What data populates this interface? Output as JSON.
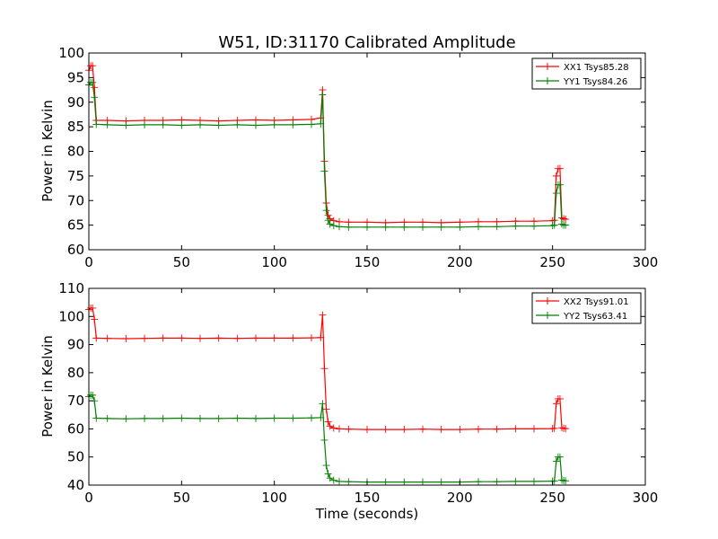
{
  "chart_data": [
    {
      "type": "line",
      "title": "W51, ID:31170 Calibrated Amplitude",
      "xlabel": "",
      "ylabel": "Power in Kelvin",
      "xlim": [
        0,
        300
      ],
      "ylim": [
        60,
        100
      ],
      "xticks": [
        0,
        50,
        100,
        150,
        200,
        250,
        300
      ],
      "yticks": [
        60,
        65,
        70,
        75,
        80,
        85,
        90,
        95,
        100
      ],
      "grid": false,
      "legend": "top-right",
      "marker": "plus",
      "series": [
        {
          "name": "XX1 Tsys85.28",
          "color": "#ff0000",
          "x": [
            0,
            1,
            2,
            3,
            4,
            10,
            20,
            30,
            40,
            50,
            60,
            70,
            80,
            90,
            100,
            110,
            120,
            125,
            126,
            127,
            128,
            129,
            130,
            132,
            135,
            140,
            150,
            160,
            170,
            180,
            190,
            200,
            210,
            220,
            230,
            240,
            250,
            251,
            252,
            253,
            254,
            255,
            256,
            257
          ],
          "y": [
            96.5,
            97.4,
            97.4,
            93.0,
            86.3,
            86.3,
            86.2,
            86.3,
            86.3,
            86.4,
            86.3,
            86.2,
            86.3,
            86.4,
            86.3,
            86.4,
            86.5,
            86.8,
            92.5,
            78.0,
            69.5,
            67.0,
            66.3,
            65.9,
            65.7,
            65.6,
            65.6,
            65.5,
            65.6,
            65.6,
            65.5,
            65.6,
            65.7,
            65.7,
            65.8,
            65.8,
            65.9,
            66.0,
            75.0,
            76.5,
            76.5,
            66.5,
            66.3,
            66.2
          ]
        },
        {
          "name": "YY1 Tsys84.26",
          "color": "#008000",
          "x": [
            0,
            1,
            2,
            3,
            4,
            10,
            20,
            30,
            40,
            50,
            60,
            70,
            80,
            90,
            100,
            110,
            120,
            125,
            126,
            127,
            128,
            129,
            130,
            132,
            135,
            140,
            150,
            160,
            170,
            180,
            190,
            200,
            210,
            220,
            230,
            240,
            250,
            251,
            252,
            253,
            254,
            255,
            256,
            257
          ],
          "y": [
            93.5,
            94.0,
            94.0,
            91.0,
            85.5,
            85.4,
            85.3,
            85.4,
            85.4,
            85.3,
            85.4,
            85.3,
            85.4,
            85.3,
            85.4,
            85.4,
            85.5,
            85.6,
            91.5,
            76.0,
            68.0,
            66.0,
            65.2,
            64.9,
            64.7,
            64.6,
            64.6,
            64.6,
            64.6,
            64.6,
            64.6,
            64.6,
            64.7,
            64.7,
            64.8,
            64.8,
            64.9,
            65.0,
            71.5,
            73.2,
            73.2,
            65.2,
            65.0,
            65.0
          ]
        }
      ]
    },
    {
      "type": "line",
      "title": "",
      "xlabel": "Time (seconds)",
      "ylabel": "Power in Kelvin",
      "xlim": [
        0,
        300
      ],
      "ylim": [
        40,
        110
      ],
      "xticks": [
        0,
        50,
        100,
        150,
        200,
        250,
        300
      ],
      "yticks": [
        40,
        50,
        60,
        70,
        80,
        90,
        100,
        110
      ],
      "grid": false,
      "legend": "top-right",
      "marker": "plus",
      "series": [
        {
          "name": "XX2 Tsys91.01",
          "color": "#ff0000",
          "x": [
            0,
            1,
            2,
            3,
            4,
            10,
            20,
            30,
            40,
            50,
            60,
            70,
            80,
            90,
            100,
            110,
            120,
            125,
            126,
            127,
            128,
            129,
            130,
            132,
            135,
            140,
            150,
            160,
            170,
            180,
            190,
            200,
            210,
            220,
            230,
            240,
            250,
            251,
            252,
            253,
            254,
            255,
            256,
            257
          ],
          "y": [
            102.5,
            103.0,
            103.0,
            99.0,
            92.3,
            92.2,
            92.1,
            92.2,
            92.3,
            92.3,
            92.2,
            92.3,
            92.2,
            92.3,
            92.3,
            92.3,
            92.4,
            92.5,
            100.5,
            81.5,
            67.0,
            62.5,
            61.0,
            60.3,
            60.0,
            59.9,
            59.8,
            59.8,
            59.8,
            59.9,
            59.8,
            59.8,
            59.9,
            59.9,
            60.0,
            60.0,
            60.1,
            60.2,
            69.0,
            70.7,
            70.7,
            60.4,
            60.2,
            60.1
          ]
        },
        {
          "name": "YY2 Tsys63.41",
          "color": "#008000",
          "x": [
            0,
            1,
            2,
            3,
            4,
            10,
            20,
            30,
            40,
            50,
            60,
            70,
            80,
            90,
            100,
            110,
            120,
            125,
            126,
            127,
            128,
            129,
            130,
            132,
            135,
            140,
            150,
            160,
            170,
            180,
            190,
            200,
            210,
            220,
            230,
            240,
            250,
            251,
            252,
            253,
            254,
            255,
            256,
            257
          ],
          "y": [
            71.5,
            72.0,
            72.0,
            70.0,
            63.8,
            63.7,
            63.6,
            63.7,
            63.7,
            63.8,
            63.7,
            63.7,
            63.8,
            63.7,
            63.8,
            63.8,
            63.9,
            64.0,
            69.0,
            56.0,
            47.0,
            44.0,
            42.5,
            41.7,
            41.3,
            41.2,
            41.1,
            41.1,
            41.1,
            41.1,
            41.1,
            41.1,
            41.2,
            41.2,
            41.3,
            41.3,
            41.4,
            41.5,
            48.5,
            50.0,
            50.0,
            41.8,
            41.6,
            41.5
          ]
        }
      ]
    }
  ]
}
